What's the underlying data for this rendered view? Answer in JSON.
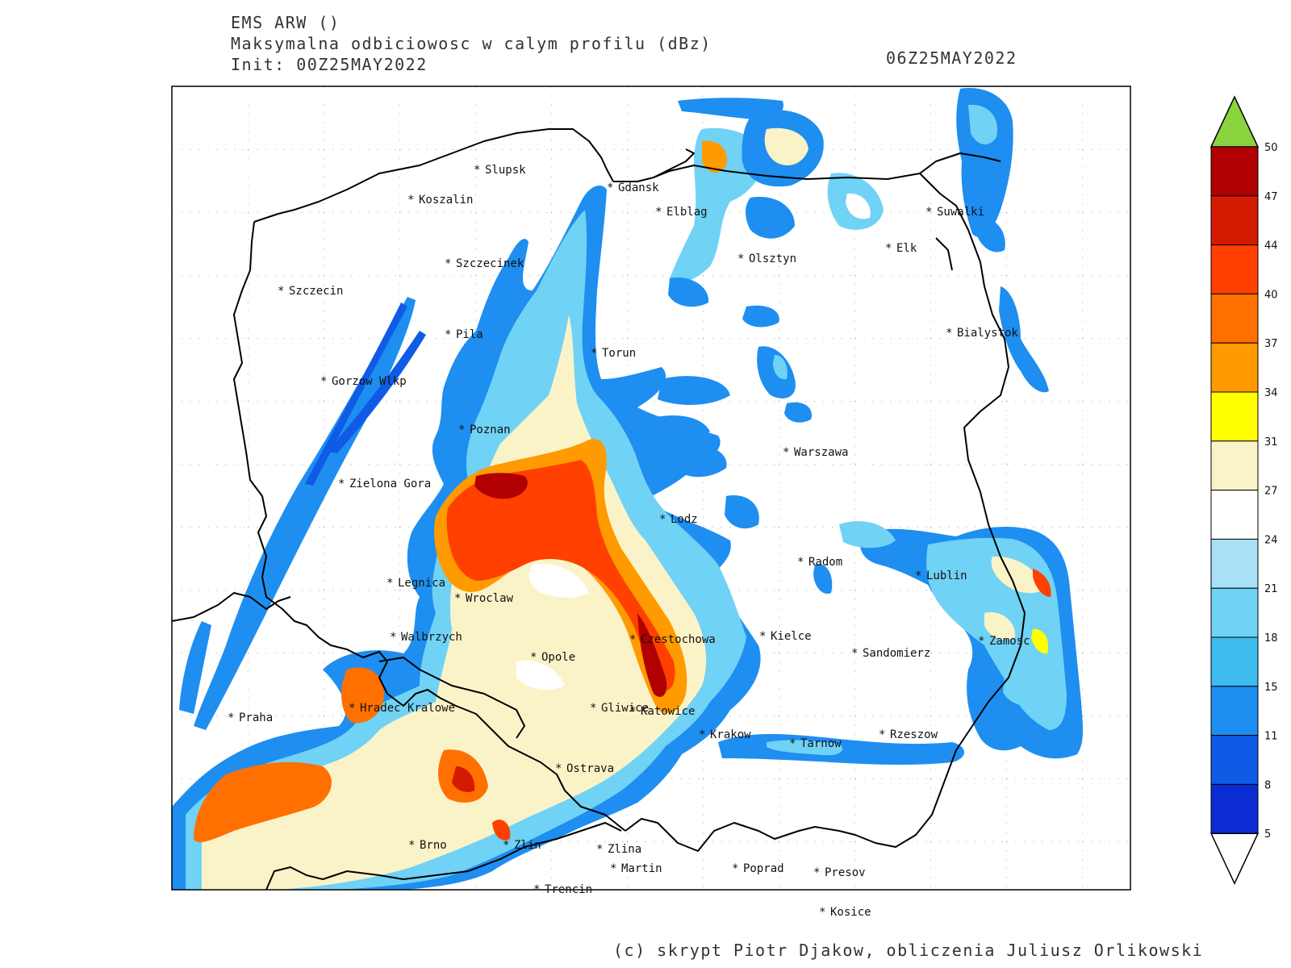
{
  "header": {
    "model": "EMS ARW ()",
    "product": "Maksymalna odbiciowosc w calym profilu (dBz)",
    "init": "Init: 00Z25MAY2022",
    "valid": "06Z25MAY2022"
  },
  "credit": "(c) skrypt Piotr Djakow, obliczenia Juliusz Orlikowski",
  "colorbar": {
    "levels": [
      "50",
      "47",
      "44",
      "40",
      "37",
      "34",
      "31",
      "27",
      "24",
      "21",
      "18",
      "15",
      "11",
      "8",
      "5"
    ],
    "colors": [
      "#b00000",
      "#d41a00",
      "#ff4000",
      "#ff7000",
      "#ff9a00",
      "#ffff00",
      "#fbf3c8",
      "#ffffff",
      "#a8e0f6",
      "#70d2f5",
      "#3ebcf0",
      "#1e8ef0",
      "#0f5be6",
      "#0a2cd2"
    ],
    "over_color": "#8ad440",
    "under_color": "#ffffff"
  },
  "cities": [
    {
      "name": "Slupsk"
    },
    {
      "name": "Gdansk"
    },
    {
      "name": "Koszalin"
    },
    {
      "name": "Elblag"
    },
    {
      "name": "Suwalki"
    },
    {
      "name": "Szczecinek"
    },
    {
      "name": "Olsztyn"
    },
    {
      "name": "Elk"
    },
    {
      "name": "Szczecin"
    },
    {
      "name": "Pila"
    },
    {
      "name": "Bialystok"
    },
    {
      "name": "Torun"
    },
    {
      "name": "Gorzow Wlkp"
    },
    {
      "name": "Poznan"
    },
    {
      "name": "Warszawa"
    },
    {
      "name": "Zielona Gora"
    },
    {
      "name": "Lodz"
    },
    {
      "name": "Radom"
    },
    {
      "name": "Lublin"
    },
    {
      "name": "Legnica"
    },
    {
      "name": "Wroclaw"
    },
    {
      "name": "Walbrzych"
    },
    {
      "name": "Czestochowa"
    },
    {
      "name": "Kielce"
    },
    {
      "name": "Zamosc"
    },
    {
      "name": "Opole"
    },
    {
      "name": "Sandomierz"
    },
    {
      "name": "Hradec Kralowe"
    },
    {
      "name": "Gliwice"
    },
    {
      "name": "Katowice"
    },
    {
      "name": "Praha"
    },
    {
      "name": "Krakow"
    },
    {
      "name": "Tarnow"
    },
    {
      "name": "Rzeszow"
    },
    {
      "name": "Ostrava"
    },
    {
      "name": "Brno"
    },
    {
      "name": "Zlin"
    },
    {
      "name": "Zlina"
    },
    {
      "name": "Martin"
    },
    {
      "name": "Poprad"
    },
    {
      "name": "Presov"
    },
    {
      "name": "Trencin"
    },
    {
      "name": "Kosice"
    }
  ]
}
